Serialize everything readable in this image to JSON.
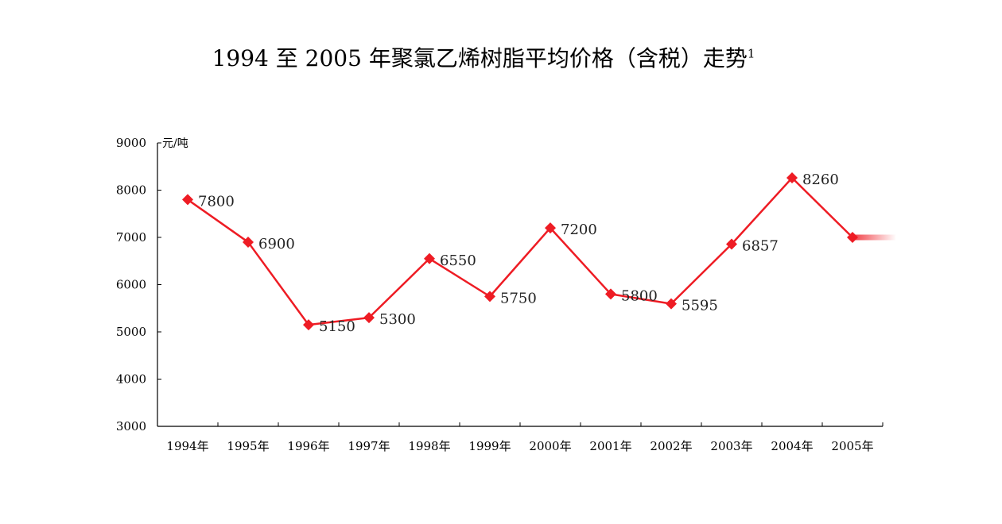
{
  "chart_data": {
    "type": "line",
    "title": "1994 至 2005 年聚氯乙烯树脂平均价格（含税）走势",
    "title_footnote": "1",
    "xlabel": "",
    "ylabel": "元/吨",
    "categories": [
      "1994年",
      "1995年",
      "1996年",
      "1997年",
      "1998年",
      "1999年",
      "2000年",
      "2001年",
      "2002年",
      "2003年",
      "2004年",
      "2005年"
    ],
    "series": [
      {
        "values": [
          7800,
          6900,
          5150,
          5300,
          6550,
          5750,
          7200,
          5800,
          5595,
          6857,
          8260,
          7000
        ],
        "data_labels": [
          "7800",
          "6900",
          "5150",
          "5300",
          "6550",
          "5750",
          "7200",
          "5800",
          "5595",
          "6857",
          "8260",
          ""
        ],
        "color": "#ee1c24",
        "marker": "diamond"
      }
    ],
    "ylim": [
      3000,
      9000
    ],
    "yticks": [
      3000,
      4000,
      5000,
      6000,
      7000,
      8000,
      9000
    ],
    "ytick_labels": [
      "3000",
      "4000",
      "5000",
      "6000",
      "7000",
      "8000",
      "9000"
    ],
    "grid": false,
    "legend": "none"
  }
}
